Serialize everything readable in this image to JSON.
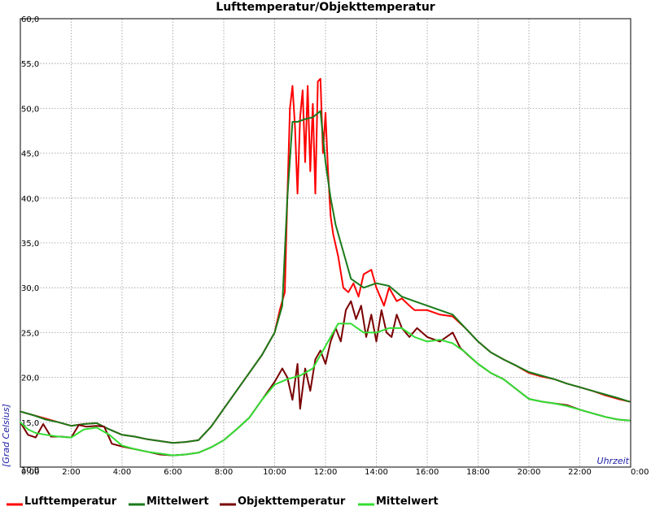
{
  "chart_data": {
    "type": "line",
    "title": "Lufttemperatur/Objekttemperatur",
    "xlabel": "Uhrzeit",
    "ylabel": "[Grad Celsius]",
    "xlim": [
      0,
      24
    ],
    "ylim": [
      10,
      60
    ],
    "grid": true,
    "legend_position": "bottom",
    "y_ticks": [
      "10,0",
      "15,0",
      "20,0",
      "25,0",
      "30,0",
      "35,0",
      "40,0",
      "45,0",
      "50,0",
      "55,0",
      "60,0"
    ],
    "x_ticks": [
      "0:00",
      "2:00",
      "4:00",
      "6:00",
      "8:00",
      "10:00",
      "12:00",
      "14:00",
      "16:00",
      "18:00",
      "20:00",
      "22:00",
      "0:00"
    ],
    "series": [
      {
        "name": "Lufttemperatur",
        "color": "#ff0000",
        "x": [
          0,
          0.5,
          1,
          1.5,
          2,
          2.5,
          3,
          3.5,
          4,
          4.5,
          5,
          5.5,
          6,
          6.5,
          7,
          7.5,
          8,
          8.5,
          9,
          9.5,
          10,
          10.2,
          10.4,
          10.5,
          10.6,
          10.7,
          10.8,
          10.9,
          11,
          11.1,
          11.2,
          11.3,
          11.4,
          11.5,
          11.6,
          11.7,
          11.8,
          11.9,
          12,
          12.1,
          12.2,
          12.3,
          12.5,
          12.7,
          12.9,
          13.1,
          13.3,
          13.5,
          13.8,
          14,
          14.3,
          14.5,
          14.8,
          15,
          15.3,
          15.5,
          16,
          16.5,
          17,
          17.5,
          18,
          18.5,
          19,
          19.5,
          20,
          20.5,
          21,
          21.5,
          22,
          22.5,
          23,
          23.5,
          23.95
        ],
        "y": [
          16.2,
          15.8,
          15.4,
          15.0,
          14.6,
          14.8,
          14.9,
          14.2,
          13.6,
          13.4,
          13.1,
          12.9,
          12.7,
          12.8,
          13.0,
          14.5,
          16.5,
          18.5,
          20.5,
          22.5,
          25.0,
          27.5,
          29.5,
          40.0,
          50.0,
          52.5,
          48.0,
          40.5,
          49.0,
          52.0,
          44.0,
          52.5,
          43.0,
          50.5,
          40.5,
          53.0,
          53.3,
          45.0,
          49.5,
          43.0,
          38.0,
          36.0,
          33.5,
          30.0,
          29.5,
          30.5,
          29.0,
          31.5,
          32.0,
          30.0,
          28.0,
          30.0,
          28.5,
          28.8,
          28.0,
          27.5,
          27.5,
          27.0,
          26.8,
          25.5,
          24.0,
          22.8,
          22.0,
          21.3,
          20.5,
          20.1,
          19.8,
          19.3,
          18.9,
          18.5,
          18.0,
          17.6,
          17.3
        ]
      },
      {
        "name": "Mittelwert",
        "color": "#1a7a1a",
        "x": [
          0,
          0.5,
          1,
          1.5,
          2,
          2.5,
          3,
          3.5,
          4,
          4.5,
          5,
          5.5,
          6,
          6.5,
          7,
          7.5,
          8,
          8.5,
          9,
          9.5,
          10,
          10.3,
          10.5,
          10.7,
          10.9,
          11.2,
          11.5,
          11.8,
          12,
          12.2,
          12.4,
          12.7,
          13,
          13.5,
          14,
          14.5,
          15,
          15.5,
          16,
          16.5,
          17,
          17.5,
          18,
          18.5,
          19,
          19.5,
          20,
          20.5,
          21,
          21.5,
          22,
          22.5,
          23,
          23.5,
          23.95
        ],
        "y": [
          16.2,
          15.8,
          15.3,
          15.0,
          14.6,
          14.8,
          14.9,
          14.2,
          13.6,
          13.4,
          13.1,
          12.9,
          12.7,
          12.8,
          13.0,
          14.5,
          16.5,
          18.5,
          20.5,
          22.5,
          25.0,
          28.0,
          40.0,
          48.5,
          48.5,
          48.8,
          49.0,
          49.7,
          44.0,
          40.0,
          37.0,
          34.0,
          31.0,
          30.0,
          30.5,
          30.2,
          29.0,
          28.5,
          28.0,
          27.5,
          27.0,
          25.5,
          24.0,
          22.8,
          22.0,
          21.3,
          20.6,
          20.2,
          19.8,
          19.3,
          18.9,
          18.5,
          18.1,
          17.7,
          17.3
        ]
      },
      {
        "name": "Objekttemperatur",
        "color": "#7a0000",
        "x": [
          0,
          0.3,
          0.6,
          0.9,
          1.2,
          1.6,
          2,
          2.3,
          2.6,
          3,
          3.3,
          3.6,
          4,
          4.5,
          5,
          5.5,
          6,
          6.5,
          7,
          7.5,
          8,
          8.5,
          9,
          9.5,
          10,
          10.3,
          10.5,
          10.7,
          10.9,
          11.0,
          11.2,
          11.4,
          11.6,
          11.8,
          12,
          12.2,
          12.4,
          12.6,
          12.8,
          13,
          13.2,
          13.4,
          13.6,
          13.8,
          14,
          14.2,
          14.4,
          14.6,
          14.8,
          15,
          15.3,
          15.6,
          16,
          16.5,
          17,
          17.3,
          17.6,
          18,
          18.5,
          19,
          19.5,
          20,
          20.5,
          21,
          21.5,
          22,
          22.5,
          23,
          23.5,
          23.95
        ],
        "y": [
          15.0,
          13.6,
          13.3,
          14.8,
          13.4,
          13.4,
          13.3,
          14.7,
          14.5,
          14.6,
          14.5,
          12.6,
          12.3,
          12.0,
          11.7,
          11.4,
          11.3,
          11.4,
          11.6,
          12.2,
          13.0,
          14.2,
          15.5,
          17.5,
          19.5,
          21.0,
          20.0,
          17.5,
          21.5,
          16.5,
          21.0,
          18.5,
          22.0,
          23.0,
          21.5,
          24.0,
          25.5,
          24.0,
          27.5,
          28.5,
          26.5,
          28.0,
          24.5,
          27.0,
          24.0,
          27.5,
          25.0,
          24.5,
          27.0,
          25.5,
          24.5,
          25.5,
          24.5,
          24.0,
          25.0,
          23.3,
          22.5,
          21.5,
          20.5,
          19.8,
          18.7,
          17.6,
          17.3,
          17.1,
          16.9,
          16.4,
          16.0,
          15.6,
          15.3,
          15.2
        ]
      },
      {
        "name": "Mittelwert",
        "color": "#33dd33",
        "x": [
          0,
          0.3,
          0.6,
          1,
          1.5,
          2,
          2.5,
          3,
          3.5,
          4,
          4.5,
          5,
          5.5,
          6,
          6.5,
          7,
          7.5,
          8,
          8.5,
          9,
          9.5,
          10,
          10.5,
          11,
          11.5,
          12,
          12.5,
          13,
          13.5,
          14,
          14.5,
          15,
          15.5,
          16,
          16.5,
          17,
          17.5,
          18,
          18.5,
          19,
          19.5,
          20,
          20.5,
          21,
          21.5,
          22,
          22.5,
          23,
          23.5,
          23.95
        ],
        "y": [
          15.0,
          14.2,
          13.8,
          13.6,
          13.4,
          13.3,
          14.2,
          14.4,
          13.6,
          12.4,
          12.0,
          11.7,
          11.5,
          11.3,
          11.4,
          11.6,
          12.2,
          13.0,
          14.2,
          15.5,
          17.5,
          19.2,
          19.8,
          20.2,
          21.0,
          23.5,
          26.0,
          26.0,
          25.0,
          25.0,
          25.5,
          25.5,
          24.5,
          24.0,
          24.2,
          23.8,
          22.8,
          21.5,
          20.5,
          19.8,
          18.7,
          17.6,
          17.3,
          17.1,
          16.8,
          16.4,
          16.0,
          15.6,
          15.3,
          15.2
        ]
      }
    ]
  }
}
